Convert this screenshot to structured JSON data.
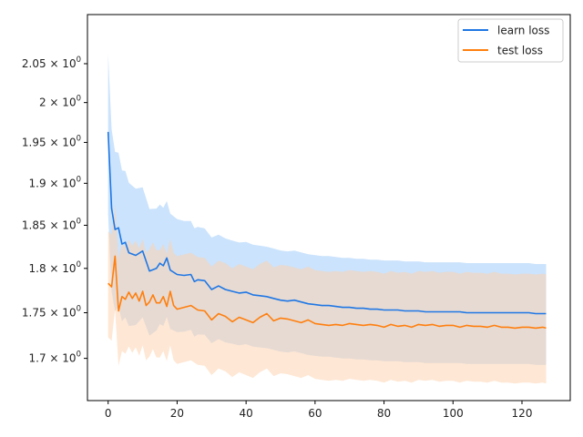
{
  "chart_data": {
    "type": "line",
    "title": "",
    "xlabel": "",
    "ylabel": "",
    "yscale": "log",
    "xlim": [
      -6,
      134
    ],
    "ylim": [
      1.655,
      2.115
    ],
    "xticks": [
      0,
      20,
      40,
      60,
      80,
      100,
      120
    ],
    "xtick_labels": [
      "0",
      "20",
      "40",
      "60",
      "80",
      "100",
      "120"
    ],
    "yticks": [
      1.7,
      1.75,
      1.8,
      1.85,
      1.9,
      1.95,
      2.0,
      2.05
    ],
    "ytick_labels": [
      {
        "base": "1.7",
        "exp": "0"
      },
      {
        "base": "1.75",
        "exp": "0"
      },
      {
        "base": "1.8",
        "exp": "0"
      },
      {
        "base": "1.85",
        "exp": "0"
      },
      {
        "base": "1.9",
        "exp": "0"
      },
      {
        "base": "1.95",
        "exp": "0"
      },
      {
        "base": "2",
        "exp": "0"
      },
      {
        "base": "2.05",
        "exp": "0"
      }
    ],
    "grid": false,
    "legend_position": "top-right",
    "band_halfwidth": {
      "learn loss": {
        "start": 0.1,
        "steady": 0.056
      },
      "test loss": {
        "start": 0.06,
        "steady": 0.06
      }
    },
    "series": [
      {
        "name": "learn loss",
        "color": "#1f77e4",
        "band_color": "#a8d0fa",
        "x": [
          0,
          1,
          2,
          3,
          4,
          5,
          6,
          8,
          10,
          12,
          14,
          15,
          16,
          17,
          18,
          20,
          22,
          24,
          25,
          26,
          28,
          30,
          32,
          34,
          36,
          38,
          40,
          42,
          44,
          46,
          48,
          50,
          52,
          54,
          56,
          58,
          60,
          62,
          64,
          66,
          68,
          70,
          72,
          74,
          76,
          78,
          80,
          82,
          84,
          86,
          88,
          90,
          92,
          94,
          96,
          98,
          100,
          102,
          104,
          106,
          108,
          110,
          112,
          114,
          116,
          118,
          120,
          122,
          124,
          126,
          127
        ],
        "values": [
          1.963,
          1.87,
          1.845,
          1.847,
          1.828,
          1.83,
          1.818,
          1.815,
          1.82,
          1.797,
          1.8,
          1.806,
          1.803,
          1.812,
          1.798,
          1.793,
          1.792,
          1.793,
          1.785,
          1.787,
          1.786,
          1.776,
          1.78,
          1.776,
          1.774,
          1.772,
          1.773,
          1.77,
          1.769,
          1.768,
          1.766,
          1.764,
          1.763,
          1.764,
          1.762,
          1.76,
          1.759,
          1.758,
          1.758,
          1.757,
          1.756,
          1.756,
          1.755,
          1.755,
          1.754,
          1.754,
          1.753,
          1.753,
          1.753,
          1.752,
          1.752,
          1.752,
          1.751,
          1.751,
          1.751,
          1.751,
          1.751,
          1.751,
          1.75,
          1.75,
          1.75,
          1.75,
          1.75,
          1.75,
          1.75,
          1.75,
          1.75,
          1.75,
          1.749,
          1.749,
          1.749
        ]
      },
      {
        "name": "test loss",
        "color": "#ff7f0e",
        "band_color": "#fdd3b0",
        "x": [
          0,
          1,
          2,
          3,
          4,
          5,
          6,
          7,
          8,
          9,
          10,
          11,
          12,
          13,
          14,
          15,
          16,
          17,
          18,
          19,
          20,
          22,
          24,
          26,
          28,
          30,
          32,
          34,
          36,
          38,
          40,
          42,
          44,
          46,
          48,
          50,
          52,
          54,
          56,
          58,
          60,
          62,
          64,
          66,
          68,
          70,
          72,
          74,
          76,
          78,
          80,
          82,
          84,
          86,
          88,
          90,
          92,
          94,
          96,
          98,
          100,
          102,
          104,
          106,
          108,
          110,
          112,
          114,
          116,
          118,
          120,
          122,
          124,
          126,
          127
        ],
        "values": [
          1.783,
          1.779,
          1.814,
          1.752,
          1.768,
          1.765,
          1.773,
          1.766,
          1.772,
          1.763,
          1.774,
          1.758,
          1.762,
          1.77,
          1.761,
          1.761,
          1.768,
          1.757,
          1.774,
          1.758,
          1.754,
          1.756,
          1.758,
          1.753,
          1.752,
          1.742,
          1.749,
          1.746,
          1.74,
          1.745,
          1.742,
          1.739,
          1.745,
          1.749,
          1.741,
          1.744,
          1.743,
          1.741,
          1.739,
          1.742,
          1.738,
          1.737,
          1.736,
          1.737,
          1.736,
          1.738,
          1.737,
          1.736,
          1.737,
          1.736,
          1.734,
          1.737,
          1.735,
          1.736,
          1.734,
          1.737,
          1.736,
          1.737,
          1.735,
          1.736,
          1.736,
          1.734,
          1.736,
          1.735,
          1.735,
          1.734,
          1.736,
          1.734,
          1.734,
          1.733,
          1.734,
          1.734,
          1.733,
          1.734,
          1.733
        ]
      }
    ]
  }
}
